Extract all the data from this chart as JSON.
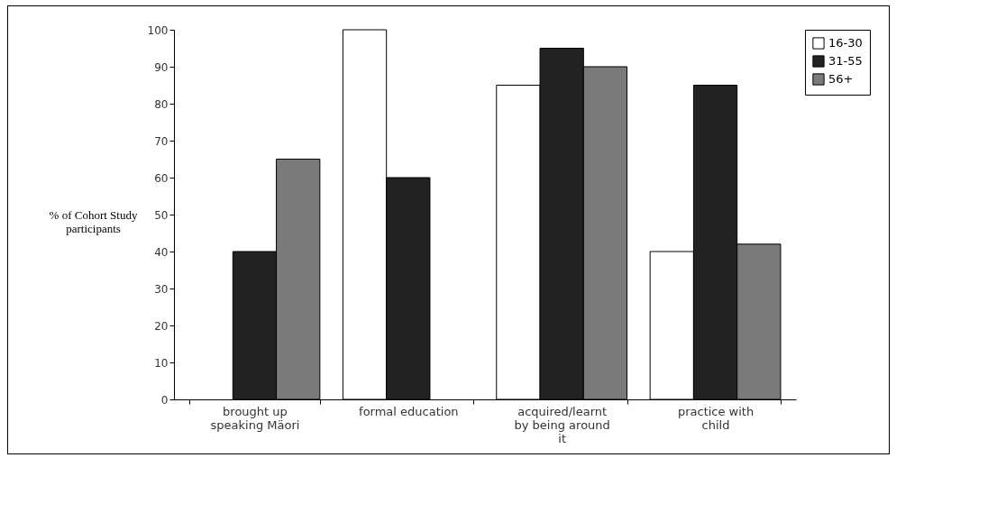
{
  "chart_data": {
    "type": "bar",
    "ylabel": "% of Cohort Study participants",
    "categories": [
      "brought up speaking Mäori",
      "formal education",
      "acquired/learnt by being around it",
      "practice with child"
    ],
    "series": [
      {
        "name": "16-30",
        "color": "#ffffff",
        "values": [
          null,
          100,
          85,
          40
        ]
      },
      {
        "name": "31-55",
        "color": "#222222",
        "values": [
          40,
          60,
          95,
          85
        ]
      },
      {
        "name": "56+",
        "color": "#7a7a7a",
        "values": [
          65,
          null,
          90,
          42
        ]
      }
    ],
    "ylim": [
      0,
      100
    ],
    "yticks": [
      0,
      10,
      20,
      30,
      40,
      50,
      60,
      70,
      80,
      90,
      100
    ],
    "grid": false,
    "legend": "right"
  }
}
